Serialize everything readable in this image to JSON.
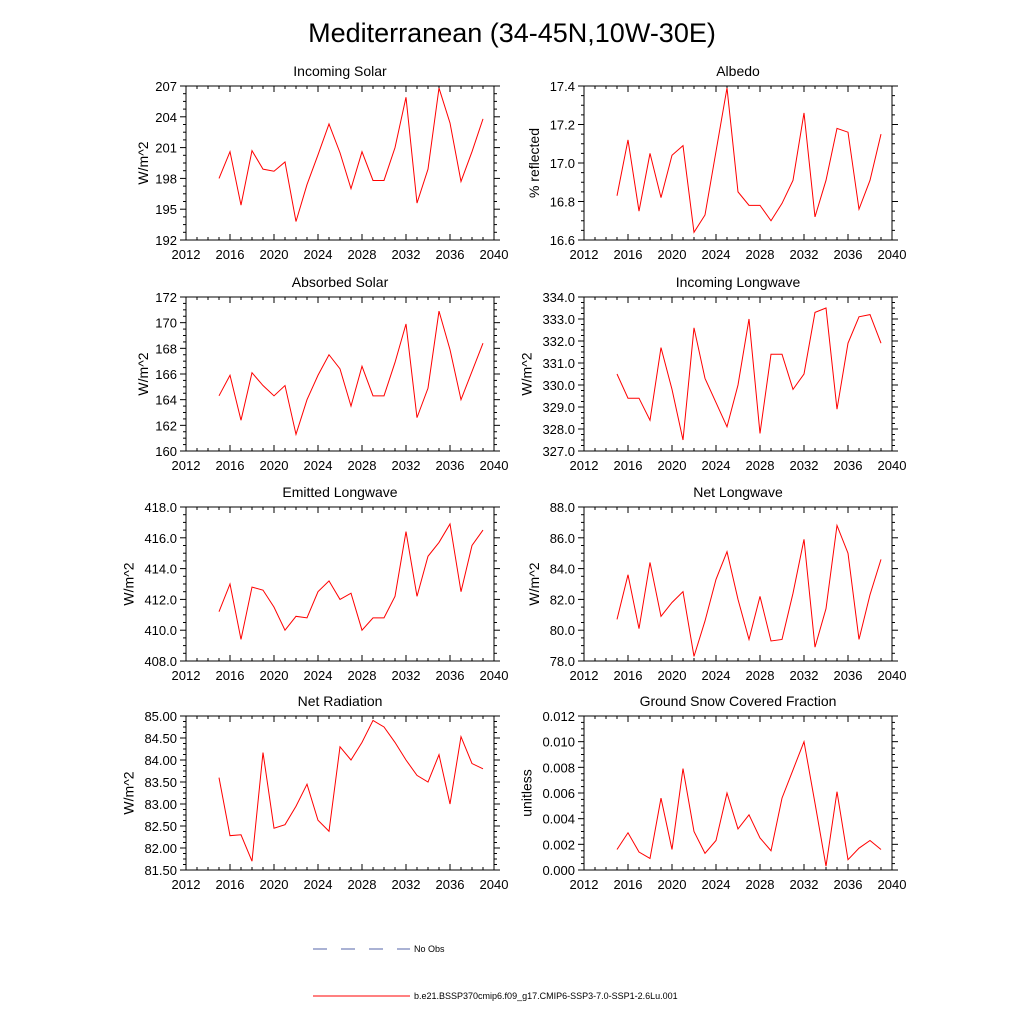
{
  "figure_title": "Mediterranean (34-45N,10W-30E)",
  "legend": {
    "obs_label": "No Obs",
    "obs_color": "#5566aa",
    "model_label": "b.e21.BSSP370cmip6.f09_g17.CMIP6-SSP3-7.0-SSP1-2.6Lu.001",
    "model_color": "#ff0000"
  },
  "chart_data": [
    {
      "type": "line",
      "title": "Incoming Solar",
      "ylabel": "W/m^2",
      "xlim": [
        2012,
        2040
      ],
      "ylim": [
        192,
        207
      ],
      "xticks": [
        2012,
        2016,
        2020,
        2024,
        2028,
        2032,
        2036,
        2040
      ],
      "xtick_labels": [
        "2012",
        "2016",
        "2020",
        "2024",
        "2028",
        "2032",
        "2036",
        "2040"
      ],
      "yticks": [
        192,
        195,
        198,
        201,
        204,
        207
      ],
      "ytick_labels": [
        "192",
        "195",
        "198",
        "201",
        "204",
        "207"
      ],
      "x": [
        2015,
        2016,
        2017,
        2018,
        2019,
        2020,
        2021,
        2022,
        2023,
        2024,
        2025,
        2026,
        2027,
        2028,
        2029,
        2030,
        2031,
        2032,
        2033,
        2034,
        2035,
        2036,
        2037,
        2038,
        2039
      ],
      "series": [
        {
          "values": [
            198.0,
            200.6,
            195.4,
            200.7,
            198.9,
            198.7,
            199.6,
            193.8,
            197.4,
            200.3,
            203.3,
            200.5,
            197.0,
            200.6,
            197.8,
            197.8,
            201.0,
            205.9,
            195.6,
            198.9,
            206.8,
            203.4,
            197.7,
            200.6,
            203.8
          ]
        }
      ]
    },
    {
      "type": "line",
      "title": "Albedo",
      "ylabel": "% reflected",
      "xlim": [
        2012,
        2040
      ],
      "ylim": [
        16.6,
        17.4
      ],
      "xticks": [
        2012,
        2016,
        2020,
        2024,
        2028,
        2032,
        2036,
        2040
      ],
      "xtick_labels": [
        "2012",
        "2016",
        "2020",
        "2024",
        "2028",
        "2032",
        "2036",
        "2040"
      ],
      "yticks": [
        16.6,
        16.8,
        17.0,
        17.2,
        17.4
      ],
      "ytick_labels": [
        "16.6",
        "16.8",
        "17.0",
        "17.2",
        "17.4"
      ],
      "x": [
        2015,
        2016,
        2017,
        2018,
        2019,
        2020,
        2021,
        2022,
        2023,
        2024,
        2025,
        2026,
        2027,
        2028,
        2029,
        2030,
        2031,
        2032,
        2033,
        2034,
        2035,
        2036,
        2037,
        2038,
        2039
      ],
      "series": [
        {
          "values": [
            16.83,
            17.12,
            16.75,
            17.05,
            16.82,
            17.04,
            17.09,
            16.64,
            16.73,
            17.06,
            17.39,
            16.85,
            16.78,
            16.78,
            16.7,
            16.79,
            16.91,
            17.26,
            16.72,
            16.91,
            17.18,
            17.16,
            16.76,
            16.91,
            17.15
          ]
        }
      ]
    },
    {
      "type": "line",
      "title": "Absorbed Solar",
      "ylabel": "W/m^2",
      "xlim": [
        2012,
        2040
      ],
      "ylim": [
        160,
        172
      ],
      "xticks": [
        2012,
        2016,
        2020,
        2024,
        2028,
        2032,
        2036,
        2040
      ],
      "xtick_labels": [
        "2012",
        "2016",
        "2020",
        "2024",
        "2028",
        "2032",
        "2036",
        "2040"
      ],
      "yticks": [
        160,
        162,
        164,
        166,
        168,
        170,
        172
      ],
      "ytick_labels": [
        "160",
        "162",
        "164",
        "166",
        "168",
        "170",
        "172"
      ],
      "x": [
        2015,
        2016,
        2017,
        2018,
        2019,
        2020,
        2021,
        2022,
        2023,
        2024,
        2025,
        2026,
        2027,
        2028,
        2029,
        2030,
        2031,
        2032,
        2033,
        2034,
        2035,
        2036,
        2037,
        2038,
        2039
      ],
      "series": [
        {
          "values": [
            164.3,
            165.9,
            162.4,
            166.1,
            165.1,
            164.3,
            165.1,
            161.3,
            164.0,
            165.9,
            167.5,
            166.4,
            163.5,
            166.6,
            164.3,
            164.3,
            166.9,
            169.9,
            162.6,
            164.9,
            170.9,
            167.9,
            164.0,
            166.2,
            168.4
          ]
        }
      ]
    },
    {
      "type": "line",
      "title": "Incoming Longwave",
      "ylabel": "W/m^2",
      "xlim": [
        2012,
        2040
      ],
      "ylim": [
        327.0,
        334.0
      ],
      "xticks": [
        2012,
        2016,
        2020,
        2024,
        2028,
        2032,
        2036,
        2040
      ],
      "xtick_labels": [
        "2012",
        "2016",
        "2020",
        "2024",
        "2028",
        "2032",
        "2036",
        "2040"
      ],
      "yticks": [
        327,
        328,
        329,
        330,
        331,
        332,
        333,
        334
      ],
      "ytick_labels": [
        "327.0",
        "328.0",
        "329.0",
        "330.0",
        "331.0",
        "332.0",
        "333.0",
        "334.0"
      ],
      "x": [
        2015,
        2016,
        2017,
        2018,
        2019,
        2020,
        2021,
        2022,
        2023,
        2024,
        2025,
        2026,
        2027,
        2028,
        2029,
        2030,
        2031,
        2032,
        2033,
        2034,
        2035,
        2036,
        2037,
        2038,
        2039
      ],
      "series": [
        {
          "values": [
            330.5,
            329.4,
            329.4,
            328.4,
            331.7,
            329.8,
            327.5,
            332.6,
            330.3,
            329.2,
            328.1,
            330.0,
            333.0,
            327.8,
            331.4,
            331.4,
            329.8,
            330.5,
            333.3,
            333.5,
            328.9,
            331.9,
            333.1,
            333.2,
            331.9
          ]
        }
      ]
    },
    {
      "type": "line",
      "title": "Emitted Longwave",
      "ylabel": "W/m^2",
      "xlim": [
        2012,
        2040
      ],
      "ylim": [
        408.0,
        418.0
      ],
      "xticks": [
        2012,
        2016,
        2020,
        2024,
        2028,
        2032,
        2036,
        2040
      ],
      "xtick_labels": [
        "2012",
        "2016",
        "2020",
        "2024",
        "2028",
        "2032",
        "2036",
        "2040"
      ],
      "yticks": [
        408,
        410,
        412,
        414,
        416,
        418
      ],
      "ytick_labels": [
        "408.0",
        "410.0",
        "412.0",
        "414.0",
        "416.0",
        "418.0"
      ],
      "x": [
        2015,
        2016,
        2017,
        2018,
        2019,
        2020,
        2021,
        2022,
        2023,
        2024,
        2025,
        2026,
        2027,
        2028,
        2029,
        2030,
        2031,
        2032,
        2033,
        2034,
        2035,
        2036,
        2037,
        2038,
        2039
      ],
      "series": [
        {
          "values": [
            411.2,
            413.0,
            409.4,
            412.8,
            412.6,
            411.5,
            410.0,
            410.9,
            410.8,
            412.5,
            413.2,
            412.0,
            412.4,
            410.0,
            410.8,
            410.8,
            412.2,
            416.4,
            412.2,
            414.8,
            415.7,
            416.9,
            412.5,
            415.5,
            416.5
          ]
        }
      ]
    },
    {
      "type": "line",
      "title": "Net Longwave",
      "ylabel": "W/m^2",
      "xlim": [
        2012,
        2040
      ],
      "ylim": [
        78.0,
        88.0
      ],
      "xticks": [
        2012,
        2016,
        2020,
        2024,
        2028,
        2032,
        2036,
        2040
      ],
      "xtick_labels": [
        "2012",
        "2016",
        "2020",
        "2024",
        "2028",
        "2032",
        "2036",
        "2040"
      ],
      "yticks": [
        78,
        80,
        82,
        84,
        86,
        88
      ],
      "ytick_labels": [
        "78.0",
        "80.0",
        "82.0",
        "84.0",
        "86.0",
        "88.0"
      ],
      "x": [
        2015,
        2016,
        2017,
        2018,
        2019,
        2020,
        2021,
        2022,
        2023,
        2024,
        2025,
        2026,
        2027,
        2028,
        2029,
        2030,
        2031,
        2032,
        2033,
        2034,
        2035,
        2036,
        2037,
        2038,
        2039
      ],
      "series": [
        {
          "values": [
            80.7,
            83.6,
            80.1,
            84.4,
            80.9,
            81.8,
            82.5,
            78.3,
            80.6,
            83.3,
            85.1,
            82.0,
            79.4,
            82.2,
            79.3,
            79.4,
            82.4,
            85.9,
            78.9,
            81.4,
            86.8,
            85.0,
            79.4,
            82.3,
            84.6
          ]
        }
      ]
    },
    {
      "type": "line",
      "title": "Net Radiation",
      "ylabel": "W/m^2",
      "xlim": [
        2012,
        2040
      ],
      "ylim": [
        81.5,
        85.0
      ],
      "xticks": [
        2012,
        2016,
        2020,
        2024,
        2028,
        2032,
        2036,
        2040
      ],
      "xtick_labels": [
        "2012",
        "2016",
        "2020",
        "2024",
        "2028",
        "2032",
        "2036",
        "2040"
      ],
      "yticks": [
        81.5,
        82.0,
        82.5,
        83.0,
        83.5,
        84.0,
        84.5,
        85.0
      ],
      "ytick_labels": [
        "81.50",
        "82.00",
        "82.50",
        "83.00",
        "83.50",
        "84.00",
        "84.50",
        "85.00"
      ],
      "x": [
        2015,
        2016,
        2017,
        2018,
        2019,
        2020,
        2021,
        2022,
        2023,
        2024,
        2025,
        2026,
        2027,
        2028,
        2029,
        2030,
        2031,
        2032,
        2033,
        2034,
        2035,
        2036,
        2037,
        2038,
        2039
      ],
      "series": [
        {
          "values": [
            83.6,
            82.28,
            82.3,
            81.7,
            84.17,
            82.45,
            82.53,
            82.95,
            83.45,
            82.63,
            82.38,
            84.3,
            84.0,
            84.4,
            84.9,
            84.75,
            84.4,
            84.0,
            83.65,
            83.5,
            84.12,
            83.0,
            84.53,
            83.92,
            83.8
          ]
        }
      ]
    },
    {
      "type": "line",
      "title": "Ground Snow Covered Fraction",
      "ylabel": "unitless",
      "xlim": [
        2012,
        2040
      ],
      "ylim": [
        0.0,
        0.012
      ],
      "xticks": [
        2012,
        2016,
        2020,
        2024,
        2028,
        2032,
        2036,
        2040
      ],
      "xtick_labels": [
        "2012",
        "2016",
        "2020",
        "2024",
        "2028",
        "2032",
        "2036",
        "2040"
      ],
      "yticks": [
        0.0,
        0.002,
        0.004,
        0.006,
        0.008,
        0.01,
        0.012
      ],
      "ytick_labels": [
        "0.000",
        "0.002",
        "0.004",
        "0.006",
        "0.008",
        "0.010",
        "0.012"
      ],
      "x": [
        2015,
        2016,
        2017,
        2018,
        2019,
        2020,
        2021,
        2022,
        2023,
        2024,
        2025,
        2026,
        2027,
        2028,
        2029,
        2030,
        2031,
        2032,
        2033,
        2034,
        2035,
        2036,
        2037,
        2038,
        2039
      ],
      "series": [
        {
          "values": [
            0.0016,
            0.0029,
            0.0014,
            0.0009,
            0.0056,
            0.0016,
            0.0079,
            0.003,
            0.0013,
            0.0023,
            0.006,
            0.0032,
            0.0043,
            0.0025,
            0.0015,
            0.0056,
            0.0078,
            0.01,
            0.0052,
            0.0003,
            0.0061,
            0.0008,
            0.0017,
            0.0023,
            0.0016
          ]
        }
      ]
    }
  ]
}
